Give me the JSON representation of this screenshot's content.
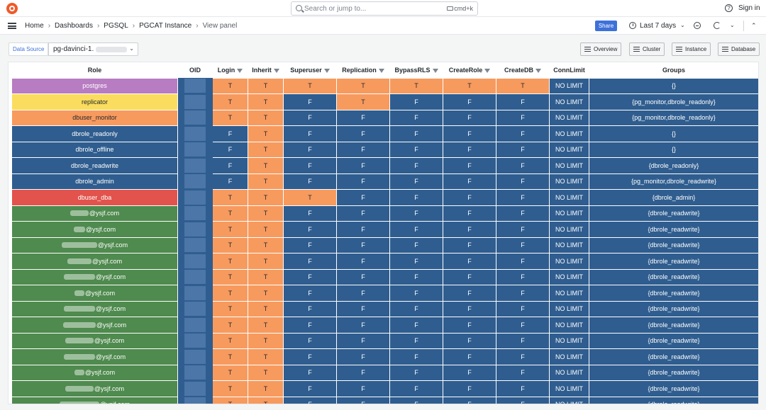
{
  "topbar": {
    "search_placeholder": "Search or jump to...",
    "search_shortcut": "cmd+k",
    "help_icon": "?",
    "sign_in": "Sign in"
  },
  "breadcrumb": {
    "items": [
      "Home",
      "Dashboards",
      "PGSQL",
      "PGCAT Instance"
    ],
    "current": "View panel",
    "separator": "›"
  },
  "toolbar": {
    "share_label": "Share",
    "time_range": "Last 7 days",
    "chevron_down": "⌄",
    "chevron_up": "⌃"
  },
  "datasource": {
    "label": "Data Source",
    "value": "pg-davinci-1."
  },
  "links": [
    "Overview",
    "Cluster",
    "Instance",
    "Database"
  ],
  "colors": {
    "accent": "#3d71d9",
    "true_cell": "#f79a5e",
    "false_cell": "#2f5d8f",
    "role_superuser": "#b87cc2",
    "role_replication": "#fadd5e",
    "role_monitor": "#f79a5e",
    "role_system": "#2f5d8f",
    "role_dba": "#e1534c",
    "role_user": "#4f8a4e"
  },
  "table": {
    "columns": [
      "Role",
      "OID",
      "Login",
      "Inherit",
      "Superuser",
      "Replication",
      "BypassRLS",
      "CreateRole",
      "CreateDB",
      "ConnLimit",
      "Groups"
    ],
    "rows": [
      {
        "role": "postgres",
        "color": "#b87cc2",
        "dark": false,
        "flags": [
          "T",
          "T",
          "T",
          "T",
          "T",
          "T",
          "T"
        ],
        "limit": "NO LIMIT",
        "groups": "{}"
      },
      {
        "role": "replicator",
        "color": "#fadd5e",
        "dark": true,
        "flags": [
          "T",
          "T",
          "F",
          "T",
          "F",
          "F",
          "F"
        ],
        "limit": "NO LIMIT",
        "groups": "{pg_monitor,dbrole_readonly}"
      },
      {
        "role": "dbuser_monitor",
        "color": "#f79a5e",
        "dark": true,
        "flags": [
          "T",
          "T",
          "F",
          "F",
          "F",
          "F",
          "F"
        ],
        "limit": "NO LIMIT",
        "groups": "{pg_monitor,dbrole_readonly}"
      },
      {
        "role": "dbrole_readonly",
        "color": "#2f5d8f",
        "dark": false,
        "flags": [
          "F",
          "T",
          "F",
          "F",
          "F",
          "F",
          "F"
        ],
        "limit": "NO LIMIT",
        "groups": "{}"
      },
      {
        "role": "dbrole_offline",
        "color": "#2f5d8f",
        "dark": false,
        "flags": [
          "F",
          "T",
          "F",
          "F",
          "F",
          "F",
          "F"
        ],
        "limit": "NO LIMIT",
        "groups": "{}"
      },
      {
        "role": "dbrole_readwrite",
        "color": "#2f5d8f",
        "dark": false,
        "flags": [
          "F",
          "T",
          "F",
          "F",
          "F",
          "F",
          "F"
        ],
        "limit": "NO LIMIT",
        "groups": "{dbrole_readonly}"
      },
      {
        "role": "dbrole_admin",
        "color": "#2f5d8f",
        "dark": false,
        "flags": [
          "F",
          "T",
          "F",
          "F",
          "F",
          "F",
          "F"
        ],
        "limit": "NO LIMIT",
        "groups": "{pg_monitor,dbrole_readwrite}"
      },
      {
        "role": "dbuser_dba",
        "color": "#e1534c",
        "dark": false,
        "flags": [
          "T",
          "T",
          "T",
          "F",
          "F",
          "F",
          "F"
        ],
        "limit": "NO LIMIT",
        "groups": "{dbrole_admin}"
      },
      {
        "role": "@ysjf.com",
        "redact": 26,
        "color": "#4f8a4e",
        "dark": false,
        "flags": [
          "T",
          "T",
          "F",
          "F",
          "F",
          "F",
          "F"
        ],
        "limit": "NO LIMIT",
        "groups": "{dbrole_readwrite}"
      },
      {
        "role": "@ysjf.com",
        "redact": 16,
        "color": "#4f8a4e",
        "dark": false,
        "flags": [
          "T",
          "T",
          "F",
          "F",
          "F",
          "F",
          "F"
        ],
        "limit": "NO LIMIT",
        "groups": "{dbrole_readwrite}"
      },
      {
        "role": "@ysjf.com",
        "redact": 50,
        "color": "#4f8a4e",
        "dark": false,
        "flags": [
          "T",
          "T",
          "F",
          "F",
          "F",
          "F",
          "F"
        ],
        "limit": "NO LIMIT",
        "groups": "{dbrole_readwrite}"
      },
      {
        "role": "@ysjf.com",
        "redact": 34,
        "color": "#4f8a4e",
        "dark": false,
        "flags": [
          "T",
          "T",
          "F",
          "F",
          "F",
          "F",
          "F"
        ],
        "limit": "NO LIMIT",
        "groups": "{dbrole_readwrite}"
      },
      {
        "role": "@ysjf.com",
        "redact": 44,
        "color": "#4f8a4e",
        "dark": false,
        "flags": [
          "T",
          "T",
          "F",
          "F",
          "F",
          "F",
          "F"
        ],
        "limit": "NO LIMIT",
        "groups": "{dbrole_readwrite}"
      },
      {
        "role": "@ysjf.com",
        "redact": 14,
        "color": "#4f8a4e",
        "dark": false,
        "flags": [
          "T",
          "T",
          "F",
          "F",
          "F",
          "F",
          "F"
        ],
        "limit": "NO LIMIT",
        "groups": "{dbrole_readwrite}"
      },
      {
        "role": "@ysjf.com",
        "redact": 44,
        "color": "#4f8a4e",
        "dark": false,
        "flags": [
          "T",
          "T",
          "F",
          "F",
          "F",
          "F",
          "F"
        ],
        "limit": "NO LIMIT",
        "groups": "{dbrole_readwrite}"
      },
      {
        "role": "@ysjf.com",
        "redact": 46,
        "color": "#4f8a4e",
        "dark": false,
        "flags": [
          "T",
          "T",
          "F",
          "F",
          "F",
          "F",
          "F"
        ],
        "limit": "NO LIMIT",
        "groups": "{dbrole_readwrite}"
      },
      {
        "role": "@ysjf.com",
        "redact": 40,
        "color": "#4f8a4e",
        "dark": false,
        "flags": [
          "T",
          "T",
          "F",
          "F",
          "F",
          "F",
          "F"
        ],
        "limit": "NO LIMIT",
        "groups": "{dbrole_readwrite}"
      },
      {
        "role": "@ysjf.com",
        "redact": 44,
        "color": "#4f8a4e",
        "dark": false,
        "flags": [
          "T",
          "T",
          "F",
          "F",
          "F",
          "F",
          "F"
        ],
        "limit": "NO LIMIT",
        "groups": "{dbrole_readwrite}"
      },
      {
        "role": "@ysjf.com",
        "redact": 14,
        "color": "#4f8a4e",
        "dark": false,
        "flags": [
          "T",
          "T",
          "F",
          "F",
          "F",
          "F",
          "F"
        ],
        "limit": "NO LIMIT",
        "groups": "{dbrole_readwrite}"
      },
      {
        "role": "@ysjf.com",
        "redact": 40,
        "color": "#4f8a4e",
        "dark": false,
        "flags": [
          "T",
          "T",
          "F",
          "F",
          "F",
          "F",
          "F"
        ],
        "limit": "NO LIMIT",
        "groups": "{dbrole_readwrite}"
      },
      {
        "role": "@ysjf.com",
        "redact": 56,
        "color": "#4f8a4e",
        "dark": false,
        "flags": [
          "T",
          "T",
          "F",
          "F",
          "F",
          "F",
          "F"
        ],
        "limit": "NO LIMIT",
        "groups": "{dbrole_readwrite}"
      }
    ]
  }
}
